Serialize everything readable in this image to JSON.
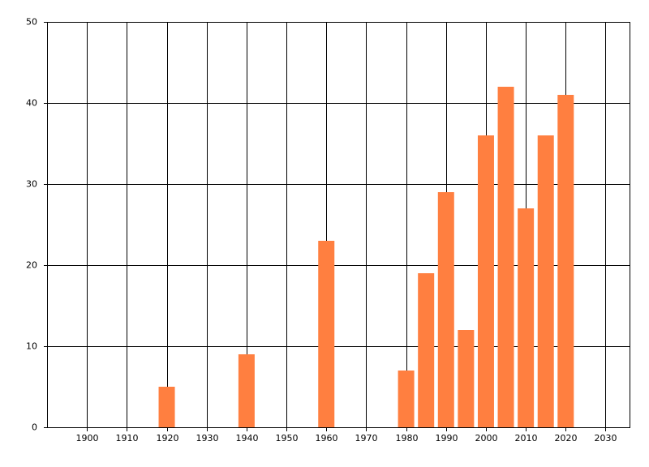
{
  "chart_data": {
    "type": "bar",
    "x": [
      1920,
      1940,
      1960,
      1980,
      1985,
      1990,
      1995,
      2000,
      2005,
      2010,
      2015,
      2020
    ],
    "values": [
      5,
      9,
      23,
      7,
      19,
      29,
      12,
      36,
      42,
      27,
      36,
      41
    ],
    "color": "#ff7f40",
    "xlim": [
      1890,
      2036
    ],
    "xticks": [
      1900,
      1910,
      1920,
      1930,
      1940,
      1950,
      1960,
      1970,
      1980,
      1990,
      2000,
      2010,
      2020,
      2030
    ],
    "ylim": [
      0,
      50
    ],
    "yticks": [
      0,
      10,
      20,
      30,
      40,
      50
    ],
    "grid": true
  }
}
